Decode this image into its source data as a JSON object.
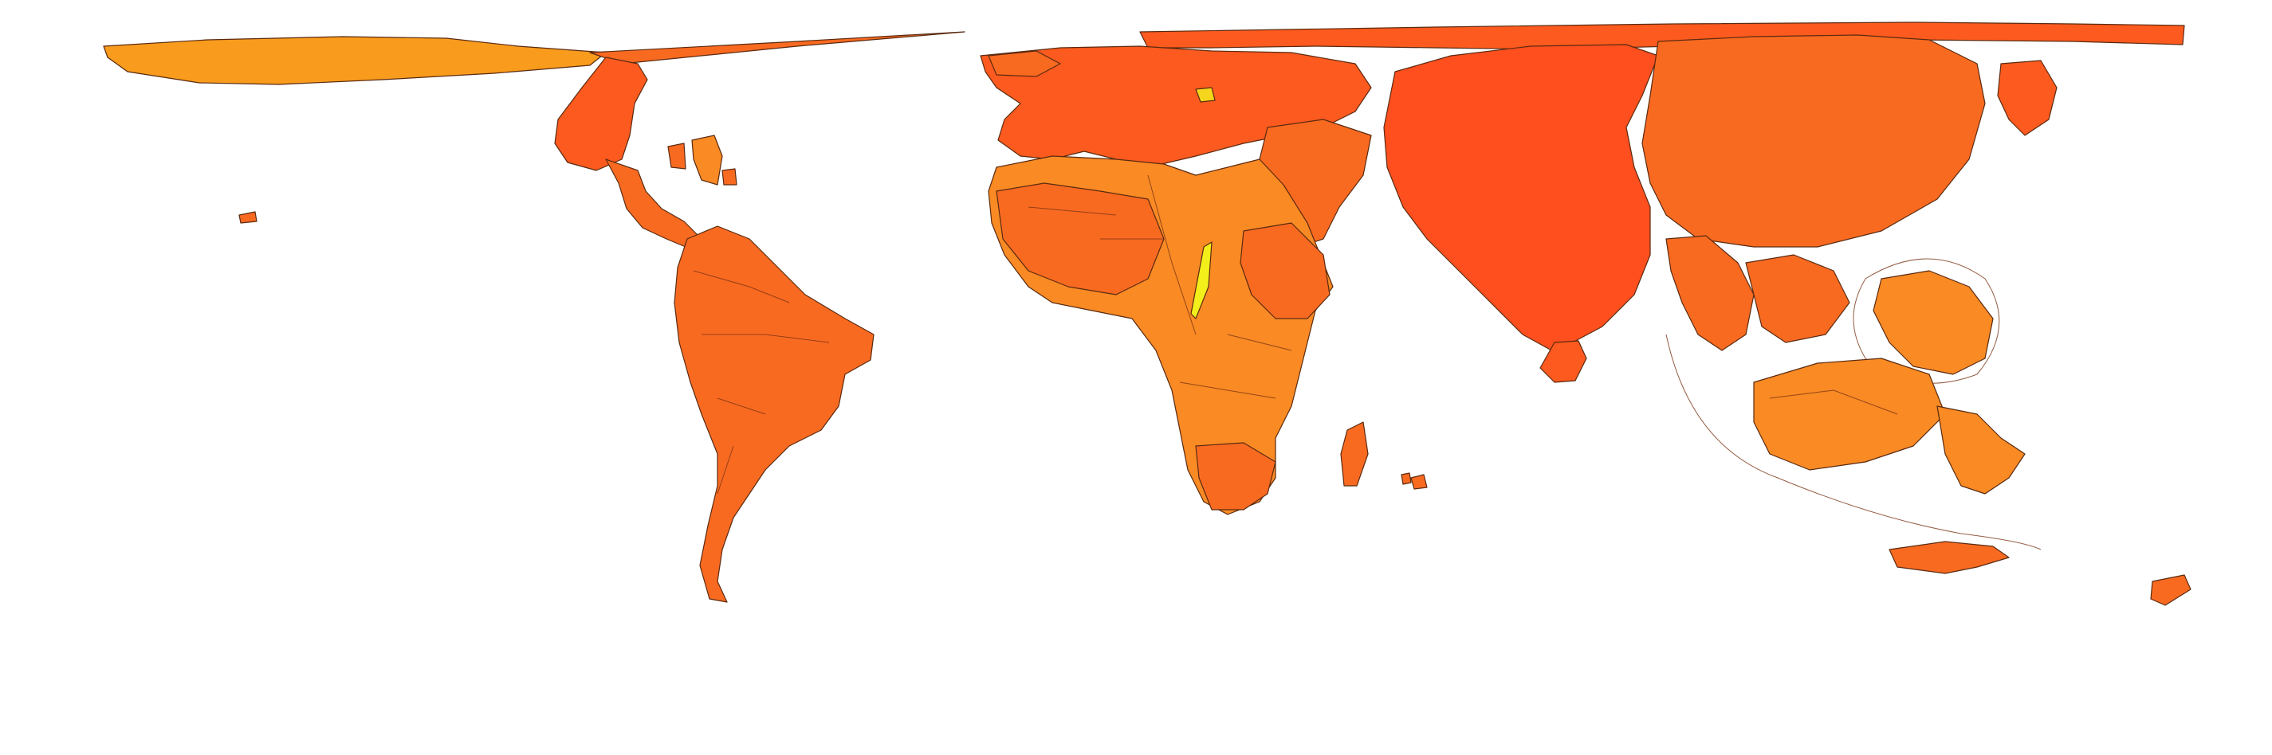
{
  "map": {
    "type": "cartogram",
    "projection": "world-equirectangular-distorted",
    "background": "#ffffff",
    "palette": {
      "red": "#ff4f1f",
      "red_orange": "#fc5a1e",
      "orange": "#f96a21",
      "light_orange": "#f98a24",
      "amber": "#f99b1c",
      "yellow": "#f6d61d",
      "bright_yellow": "#f2ef1a"
    },
    "regions": [
      {
        "name": "greenland-region",
        "color": "amber"
      },
      {
        "name": "north-america-region",
        "color": "red_orange"
      },
      {
        "name": "central-america-region",
        "color": "orange"
      },
      {
        "name": "caribbean-region",
        "color": "light_orange"
      },
      {
        "name": "south-america-region",
        "color": "orange"
      },
      {
        "name": "europe-region",
        "color": "red_orange"
      },
      {
        "name": "middle-east-region",
        "color": "orange"
      },
      {
        "name": "africa-region",
        "color": "light_orange"
      },
      {
        "name": "madagascar-region",
        "color": "orange"
      },
      {
        "name": "south-asia-region",
        "color": "red"
      },
      {
        "name": "sri-lanka-region",
        "color": "red_orange"
      },
      {
        "name": "east-asia-region",
        "color": "orange"
      },
      {
        "name": "southeast-asia-region",
        "color": "orange"
      },
      {
        "name": "philippines-region",
        "color": "light_orange"
      },
      {
        "name": "indonesia-region",
        "color": "light_orange"
      },
      {
        "name": "papua-region",
        "color": "light_orange"
      },
      {
        "name": "australia-region",
        "color": "orange"
      },
      {
        "name": "new-zealand-region",
        "color": "orange"
      },
      {
        "name": "japan-region",
        "color": "red_orange"
      },
      {
        "name": "russia-strip-region",
        "color": "red_orange"
      }
    ]
  }
}
